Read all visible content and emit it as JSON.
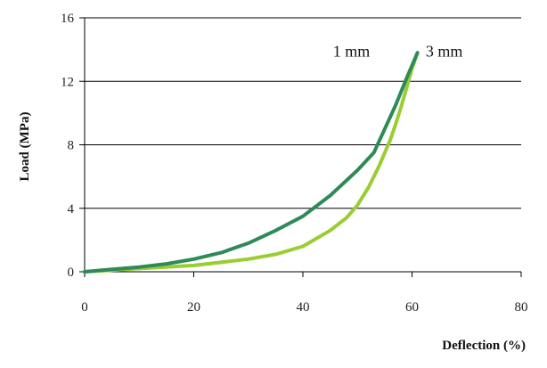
{
  "chart_data": {
    "type": "line",
    "title": "",
    "xlabel": "Deflection (%)",
    "ylabel": "Load (MPa)",
    "xlim": [
      0,
      80
    ],
    "ylim": [
      0,
      16
    ],
    "x_ticks": [
      "0",
      "20",
      "40",
      "60",
      "80"
    ],
    "y_ticks": [
      "0",
      "4",
      "8",
      "12",
      "16"
    ],
    "grid": "horizontal",
    "legend": "none",
    "annotations": [
      {
        "text": "1 mm",
        "series": "1 mm"
      },
      {
        "text": "3 mm",
        "series": "3 mm"
      }
    ],
    "series": [
      {
        "name": "1 mm",
        "color": "#2e8b57",
        "x": [
          0,
          5,
          10,
          15,
          20,
          25,
          30,
          35,
          40,
          45,
          50,
          53,
          55,
          57,
          59,
          61
        ],
        "y": [
          0,
          0.15,
          0.3,
          0.5,
          0.8,
          1.2,
          1.8,
          2.6,
          3.5,
          4.8,
          6.4,
          7.5,
          9.0,
          10.5,
          12.2,
          13.8
        ]
      },
      {
        "name": "3 mm",
        "color": "#9acd32",
        "x": [
          0,
          10,
          20,
          30,
          35,
          40,
          45,
          48,
          50,
          52,
          54,
          55,
          56,
          57,
          58,
          59,
          60,
          61
        ],
        "y": [
          0,
          0.2,
          0.4,
          0.8,
          1.1,
          1.6,
          2.6,
          3.4,
          4.2,
          5.3,
          6.7,
          7.5,
          8.3,
          9.3,
          10.4,
          11.6,
          12.8,
          13.8
        ]
      }
    ]
  }
}
